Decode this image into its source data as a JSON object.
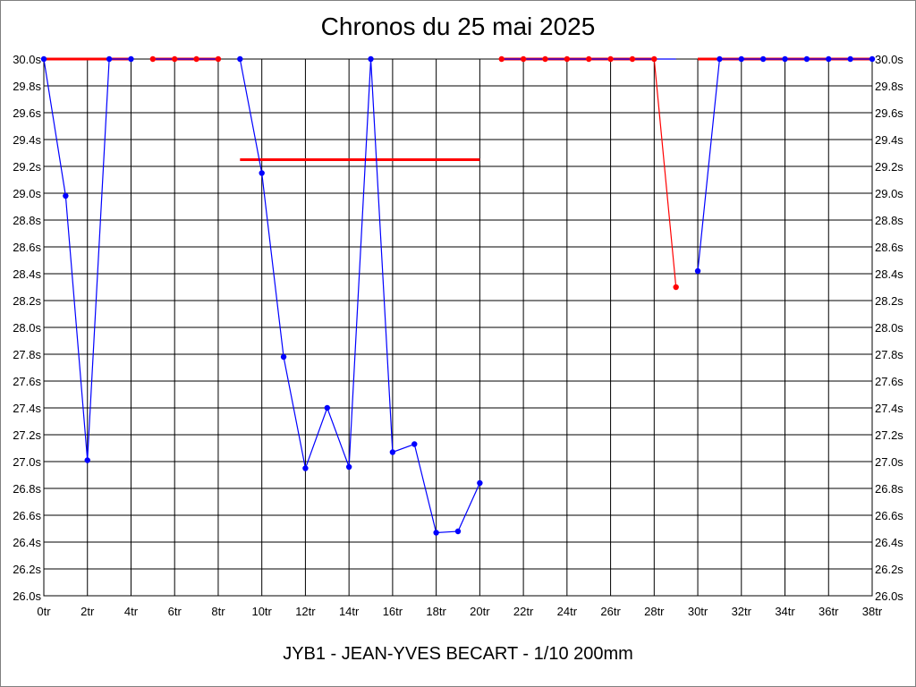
{
  "chart_data": {
    "type": "line",
    "title": "Chronos du 25 mai 2025",
    "footer": "JYB1 - JEAN-YVES BECART - 1/10 200mm",
    "xlim": [
      0,
      38
    ],
    "ylim": [
      26.0,
      30.0
    ],
    "x_ticks": [
      "0tr",
      "2tr",
      "4tr",
      "6tr",
      "8tr",
      "10tr",
      "12tr",
      "14tr",
      "16tr",
      "18tr",
      "20tr",
      "22tr",
      "24tr",
      "26tr",
      "28tr",
      "30tr",
      "32tr",
      "34tr",
      "36tr",
      "38tr"
    ],
    "x_tick_values": [
      0,
      2,
      4,
      6,
      8,
      10,
      12,
      14,
      16,
      18,
      20,
      22,
      24,
      26,
      28,
      30,
      32,
      34,
      36,
      38
    ],
    "y_ticks": [
      "26.0s",
      "26.2s",
      "26.4s",
      "26.6s",
      "26.8s",
      "27.0s",
      "27.2s",
      "27.4s",
      "27.6s",
      "27.8s",
      "28.0s",
      "28.2s",
      "28.4s",
      "28.6s",
      "28.8s",
      "29.0s",
      "29.2s",
      "29.4s",
      "29.6s",
      "29.8s",
      "30.0s"
    ],
    "y_tick_values": [
      26.0,
      26.2,
      26.4,
      26.6,
      26.8,
      27.0,
      27.2,
      27.4,
      27.6,
      27.8,
      28.0,
      28.2,
      28.4,
      28.6,
      28.8,
      29.0,
      29.2,
      29.4,
      29.6,
      29.8,
      30.0
    ],
    "grid": true,
    "segments": [
      {
        "color": "#0000ff",
        "points": [
          [
            0,
            30.0
          ],
          [
            1,
            28.98
          ],
          [
            2,
            27.01
          ],
          [
            3,
            30.0
          ],
          [
            4,
            30.0
          ]
        ]
      },
      {
        "color": "#0000ff",
        "points": [
          [
            5,
            30.0
          ],
          [
            6,
            30.0
          ],
          [
            7,
            30.0
          ],
          [
            8,
            30.0
          ]
        ]
      },
      {
        "color": "#0000ff",
        "points": [
          [
            9,
            30.0
          ],
          [
            10,
            29.15
          ],
          [
            11,
            27.78
          ],
          [
            12,
            26.95
          ],
          [
            13,
            27.4
          ],
          [
            14,
            26.96
          ],
          [
            15,
            30.0
          ],
          [
            16,
            27.07
          ],
          [
            17,
            27.13
          ],
          [
            18,
            26.47
          ],
          [
            19,
            26.48
          ],
          [
            20,
            26.84
          ]
        ]
      },
      {
        "color": "#0000ff",
        "points": [
          [
            21,
            30.0
          ],
          [
            22,
            30.0
          ],
          [
            23,
            30.0
          ],
          [
            24,
            30.0
          ],
          [
            25,
            30.0
          ],
          [
            26,
            30.0
          ],
          [
            27,
            30.0
          ],
          [
            28,
            30.0
          ],
          [
            29,
            30.0
          ]
        ]
      },
      {
        "color": "#ff0000",
        "points": [
          [
            28,
            30.0
          ],
          [
            29,
            28.3
          ]
        ]
      },
      {
        "color": "#0000ff",
        "points": [
          [
            30,
            28.42
          ],
          [
            31,
            30.0
          ],
          [
            32,
            30.0
          ],
          [
            33,
            30.0
          ],
          [
            34,
            30.0
          ],
          [
            35,
            30.0
          ],
          [
            36,
            30.0
          ],
          [
            37,
            30.0
          ],
          [
            38,
            30.0
          ]
        ]
      }
    ],
    "ref_lines": [
      {
        "color": "#ff0000",
        "x": [
          0,
          4
        ],
        "y": 30.0
      },
      {
        "color": "#ff0000",
        "x": [
          5,
          8
        ],
        "y": 30.0
      },
      {
        "color": "#ff0000",
        "x": [
          9,
          20
        ],
        "y": 29.25
      },
      {
        "color": "#ff0000",
        "x": [
          21,
          28
        ],
        "y": 30.0
      },
      {
        "color": "#ff0000",
        "x": [
          30,
          38
        ],
        "y": 30.0
      }
    ],
    "markers": [
      {
        "color": "#0000ff",
        "points": [
          [
            0,
            30.0
          ],
          [
            1,
            28.98
          ],
          [
            2,
            27.01
          ],
          [
            3,
            30.0
          ],
          [
            4,
            30.0
          ],
          [
            9,
            30.0
          ],
          [
            10,
            29.15
          ],
          [
            11,
            27.78
          ],
          [
            12,
            26.95
          ],
          [
            13,
            27.4
          ],
          [
            14,
            26.96
          ],
          [
            15,
            30.0
          ],
          [
            16,
            27.07
          ],
          [
            17,
            27.13
          ],
          [
            18,
            26.47
          ],
          [
            19,
            26.48
          ],
          [
            20,
            26.84
          ],
          [
            30,
            28.42
          ],
          [
            31,
            30.0
          ],
          [
            32,
            30.0
          ],
          [
            33,
            30.0
          ],
          [
            34,
            30.0
          ],
          [
            35,
            30.0
          ],
          [
            36,
            30.0
          ],
          [
            37,
            30.0
          ],
          [
            38,
            30.0
          ]
        ]
      },
      {
        "color": "#ff0000",
        "points": [
          [
            5,
            30.0
          ],
          [
            6,
            30.0
          ],
          [
            7,
            30.0
          ],
          [
            8,
            30.0
          ],
          [
            21,
            30.0
          ],
          [
            22,
            30.0
          ],
          [
            23,
            30.0
          ],
          [
            24,
            30.0
          ],
          [
            25,
            30.0
          ],
          [
            26,
            30.0
          ],
          [
            27,
            30.0
          ],
          [
            28,
            30.0
          ],
          [
            29,
            28.3
          ]
        ]
      }
    ]
  }
}
